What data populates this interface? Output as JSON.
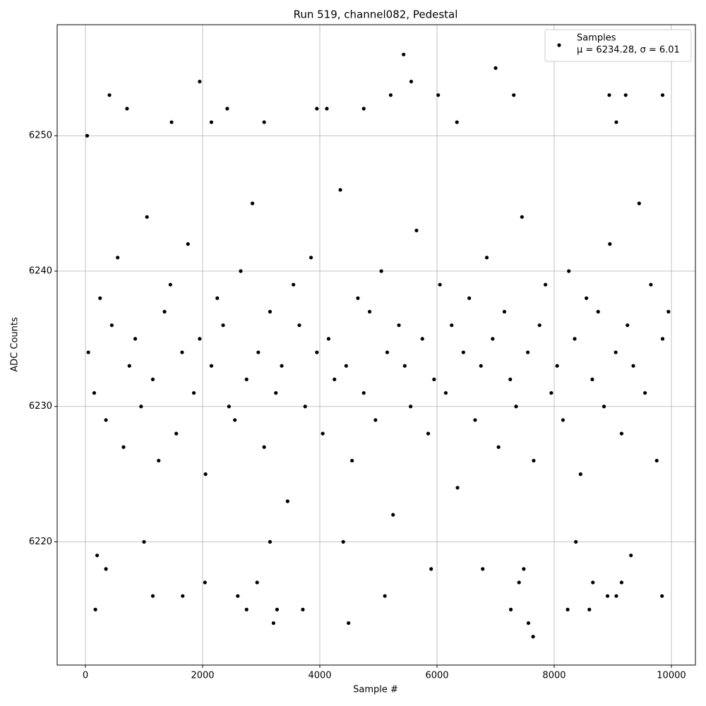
{
  "chart_data": {
    "type": "scatter",
    "title": "Run 519, channel082, Pedestal",
    "x_label": "Sample #",
    "y_label": "ADC Counts",
    "legend_note": "μ = 6234.28, σ = 6.01",
    "legend": "upper right",
    "grid": true,
    "xlim": [
      -482,
      10410
    ],
    "ylim": [
      6210.9,
      6258.2
    ],
    "xticks": [
      0,
      2000,
      4000,
      6000,
      8000,
      10000
    ],
    "yticks": [
      6220,
      6230,
      6240,
      6250
    ],
    "x": [
      410,
      710,
      30,
      1950,
      2420,
      3950,
      4120,
      4750,
      5210,
      5430,
      5560,
      6020,
      7000,
      7310,
      8940,
      9220,
      9850,
      9060,
      6340,
      2150,
      3050,
      1470,
      170,
      2040,
      1150,
      1660,
      2600,
      2750,
      3210,
      3270,
      3710,
      4490,
      5110,
      7260,
      7400,
      7560,
      7640,
      8230,
      8600,
      8910,
      9060,
      9150,
      9840,
      2930,
      8660,
      200,
      350,
      1000,
      3150,
      4400,
      5900,
      6780,
      7480,
      8370,
      9310,
      50,
      150,
      250,
      350,
      450,
      550,
      650,
      750,
      850,
      950,
      1050,
      1150,
      1250,
      1350,
      1450,
      1550,
      1650,
      1750,
      1850,
      1950,
      2050,
      2150,
      2250,
      2350,
      2450,
      2550,
      2650,
      2750,
      2850,
      2950,
      3050,
      3150,
      3250,
      3350,
      3450,
      3550,
      3650,
      3750,
      3850,
      3950,
      4050,
      4150,
      4250,
      4350,
      4450,
      4550,
      4650,
      4750,
      4850,
      4950,
      5050,
      5150,
      5250,
      5350,
      5450,
      5550,
      5650,
      5750,
      5850,
      5950,
      6050,
      6150,
      6250,
      6350,
      6450,
      6550,
      6650,
      6750,
      6850,
      6950,
      7050,
      7150,
      7250,
      7350,
      7450,
      7550,
      7650,
      7750,
      7850,
      7950,
      8050,
      8150,
      8250,
      8350,
      8450,
      8550,
      8650,
      8750,
      8850,
      8950,
      9050,
      9150,
      9250,
      9350,
      9450,
      9550,
      9650,
      9750,
      9850,
      9950
    ],
    "series": [
      {
        "name": "Samples",
        "color": "#000000",
        "values": [
          6253,
          6252,
          6250,
          6254,
          6252,
          6252,
          6252,
          6252,
          6253,
          6256,
          6254,
          6253,
          6255,
          6253,
          6253,
          6253,
          6253,
          6251,
          6251,
          6251,
          6251,
          6251,
          6215,
          6217,
          6216,
          6216,
          6216,
          6215,
          6214,
          6215,
          6215,
          6214,
          6216,
          6215,
          6217,
          6214,
          6213,
          6215,
          6215,
          6216,
          6216,
          6217,
          6216,
          6217,
          6217,
          6219,
          6218,
          6220,
          6220,
          6220,
          6218,
          6218,
          6218,
          6220,
          6219,
          6234,
          6231,
          6238,
          6229,
          6236,
          6241,
          6227,
          6233,
          6235,
          6230,
          6244,
          6232,
          6226,
          6237,
          6239,
          6228,
          6234,
          6242,
          6231,
          6235,
          6225,
          6233,
          6238,
          6236,
          6230,
          6229,
          6240,
          6232,
          6245,
          6234,
          6227,
          6237,
          6231,
          6233,
          6223,
          6239,
          6236,
          6230,
          6241,
          6234,
          6228,
          6235,
          6232,
          6246,
          6233,
          6226,
          6238,
          6231,
          6237,
          6229,
          6240,
          6234,
          6222,
          6236,
          6233,
          6230,
          6243,
          6235,
          6228,
          6232,
          6239,
          6231,
          6236,
          6224,
          6234,
          6238,
          6229,
          6233,
          6241,
          6235,
          6227,
          6237,
          6232,
          6230,
          6244,
          6234,
          6226,
          6236,
          6239,
          6231,
          6233,
          6229,
          6240,
          6235,
          6225,
          6238,
          6232,
          6237,
          6230,
          6242,
          6234,
          6228,
          6236,
          6233,
          6245,
          6231,
          6239,
          6226,
          6235,
          6237
        ]
      }
    ]
  }
}
